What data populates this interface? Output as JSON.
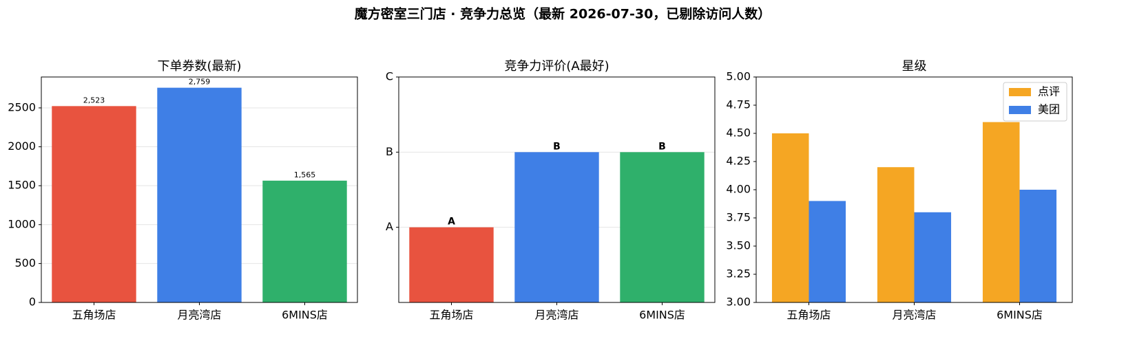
{
  "title": "魔方密室三门店 · 竞争力总览（最新 2026-07-30，已剔除访问人数）",
  "chart_data": [
    {
      "type": "bar",
      "title": "下单券数(最新)",
      "categories": [
        "五角场店",
        "月亮湾店",
        "6MINS店"
      ],
      "values": [
        2523,
        2759,
        1565
      ],
      "value_labels": [
        "2,523",
        "2,759",
        "1,565"
      ],
      "colors": [
        "#e8533f",
        "#3f7fe6",
        "#2fb06b"
      ],
      "ylim": [
        0,
        2897
      ],
      "yticks": [
        0,
        500,
        1000,
        1500,
        2000,
        2500
      ],
      "grid": true
    },
    {
      "type": "bar",
      "title": "竞争力评价(A最好)",
      "categories": [
        "五角场店",
        "月亮湾店",
        "6MINS店"
      ],
      "values": [
        1,
        2,
        2
      ],
      "value_labels": [
        "A",
        "B",
        "B"
      ],
      "colors": [
        "#e8533f",
        "#3f7fe6",
        "#2fb06b"
      ],
      "ylim": [
        0,
        3
      ],
      "yticks": [
        {
          "value": 1,
          "label": "A"
        },
        {
          "value": 2,
          "label": "B"
        },
        {
          "value": 3,
          "label": "C"
        }
      ],
      "grid": true
    },
    {
      "type": "grouped-bar",
      "title": "星级",
      "categories": [
        "五角场店",
        "月亮湾店",
        "6MINS店"
      ],
      "series": [
        {
          "name": "点评",
          "color": "#f5a623",
          "values": [
            4.5,
            4.2,
            4.6
          ]
        },
        {
          "name": "美团",
          "color": "#3f7fe6",
          "values": [
            3.9,
            3.8,
            4.0
          ]
        }
      ],
      "ylim": [
        3,
        5
      ],
      "yticks": [
        {
          "value": 3,
          "label": "3.00"
        },
        {
          "value": 3.25,
          "label": "3.25"
        },
        {
          "value": 3.5,
          "label": "3.50"
        },
        {
          "value": 3.75,
          "label": "3.75"
        },
        {
          "value": 4,
          "label": "4.00"
        },
        {
          "value": 4.25,
          "label": "4.25"
        },
        {
          "value": 4.5,
          "label": "4.50"
        },
        {
          "value": 4.75,
          "label": "4.75"
        },
        {
          "value": 5,
          "label": "5.00"
        }
      ],
      "grid": false,
      "legend": "upper right"
    }
  ]
}
